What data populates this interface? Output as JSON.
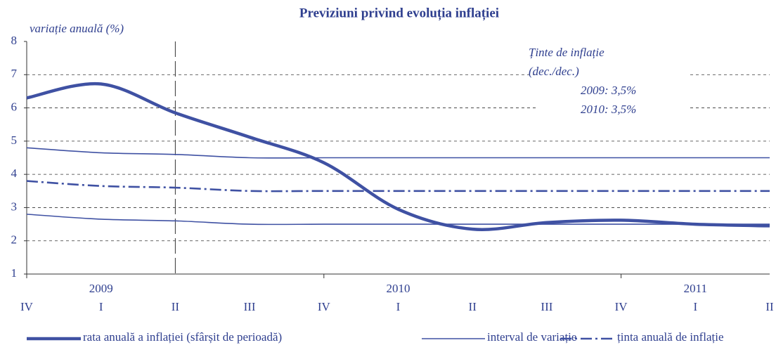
{
  "chart_data": {
    "type": "line",
    "title": "Previziuni privind evoluția inflației",
    "ylabel": "variație anuală (%)",
    "categories": [
      "IV",
      "I",
      "II",
      "III",
      "IV",
      "I",
      "II",
      "III",
      "IV",
      "I",
      "II"
    ],
    "years": [
      null,
      "2009",
      null,
      null,
      null,
      "2010",
      null,
      null,
      null,
      "2011",
      null
    ],
    "ylim": [
      1,
      8
    ],
    "yticks": [
      1,
      2,
      3,
      4,
      5,
      6,
      7,
      8
    ],
    "grid": true,
    "annotations": [
      "Ținte de inflație",
      "(dec./dec.)",
      "2009: 3,5%",
      "2010: 3,5%"
    ],
    "series": [
      {
        "name": "rata anuală a inflației (sfârșit de perioadă)",
        "color": "#3f51a3",
        "style": "thick",
        "values": [
          6.3,
          6.72,
          5.85,
          5.12,
          4.35,
          2.95,
          2.35,
          2.55,
          2.62,
          2.5,
          2.45
        ]
      },
      {
        "name": "interval de variație",
        "color": "#3f51a3",
        "style": "thin",
        "values": [
          4.8,
          4.65,
          4.6,
          4.5,
          4.5,
          4.5,
          4.5,
          4.5,
          4.5,
          4.5,
          4.5
        ],
        "values_lower": [
          2.8,
          2.65,
          2.6,
          2.5,
          2.5,
          2.5,
          2.5,
          2.5,
          2.5,
          2.5,
          2.5
        ]
      },
      {
        "name": "ținta anuală de inflație",
        "color": "#3f51a3",
        "style": "dashdot",
        "values": [
          3.8,
          3.65,
          3.6,
          3.5,
          3.5,
          3.5,
          3.5,
          3.5,
          3.5,
          3.5,
          3.5
        ]
      }
    ]
  }
}
